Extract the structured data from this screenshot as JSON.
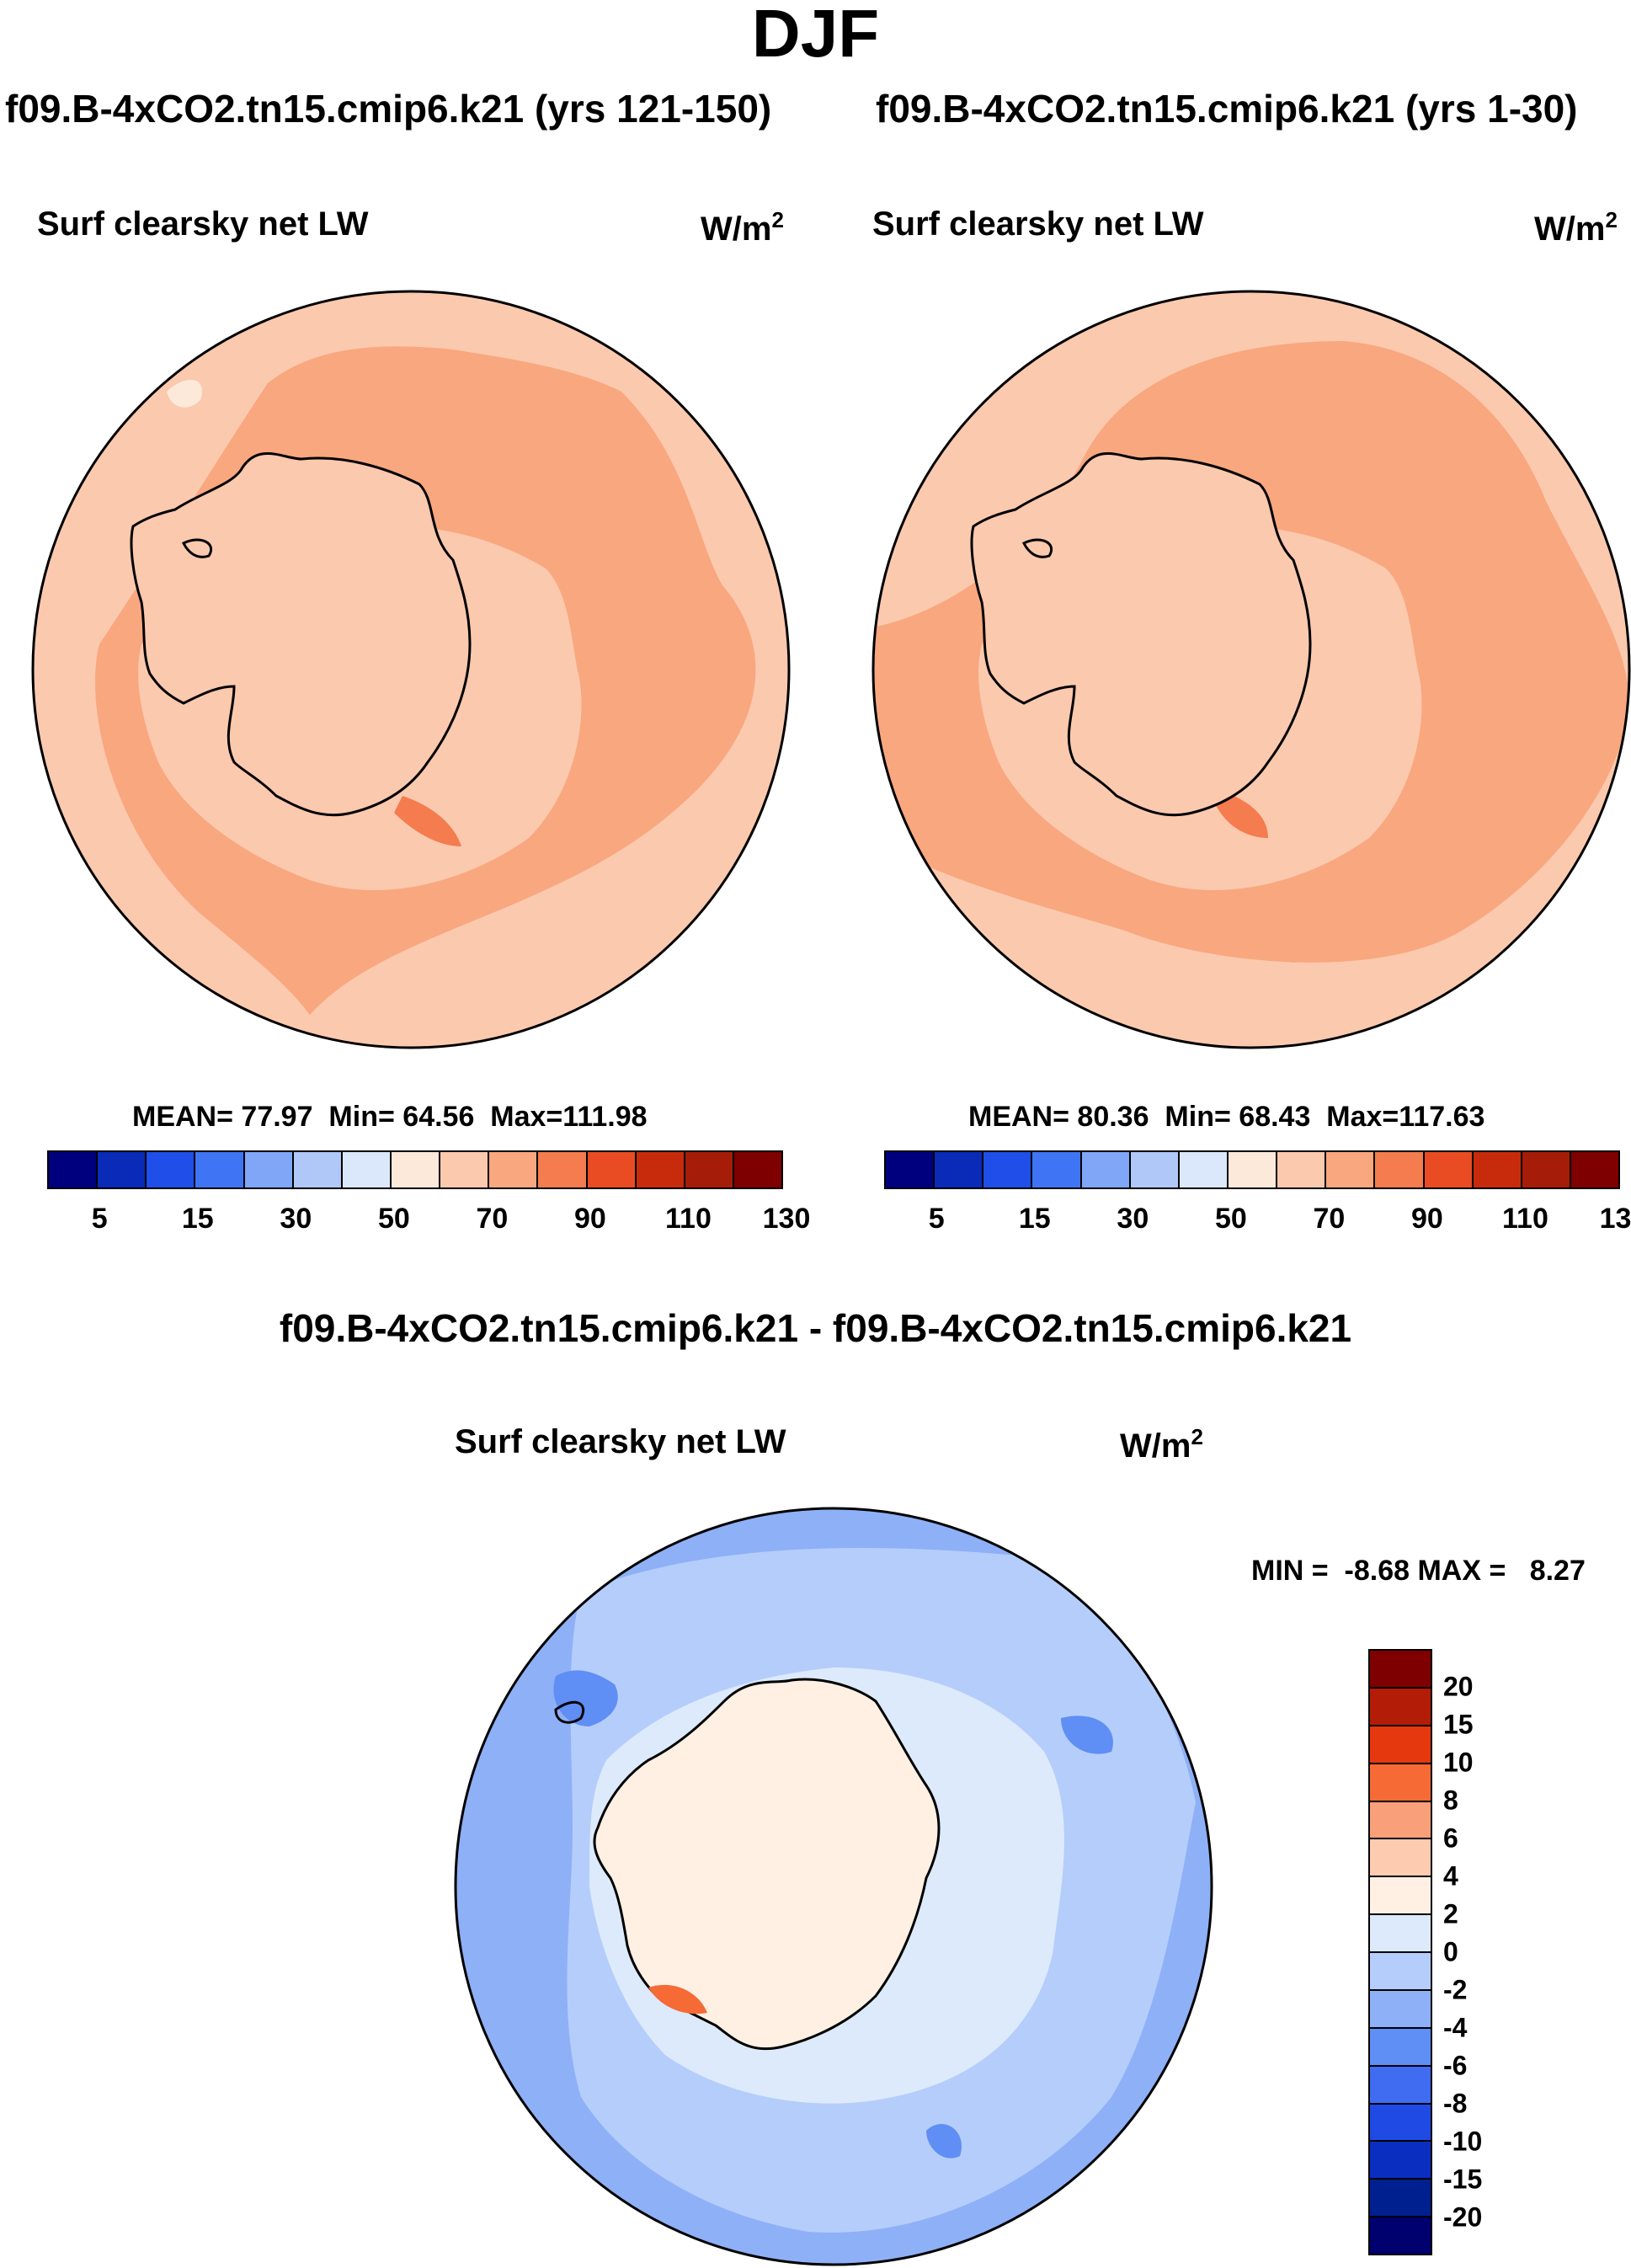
{
  "title": "DJF",
  "panels": [
    {
      "case": "f09.B-4xCO2.tn15.cmip6.k21 (yrs 121-150)",
      "variable": "Surf clearsky net LW",
      "unit_base": "W/m",
      "unit_exp": "2",
      "stats": {
        "mean_label": "MEAN=",
        "mean": "77.97",
        "min_label": "Min=",
        "min": "64.56",
        "max_label": "Max=",
        "max": "111.98"
      }
    },
    {
      "case": "f09.B-4xCO2.tn15.cmip6.k21 (yrs 1-30)",
      "variable": "Surf clearsky net LW",
      "unit_base": "W/m",
      "unit_exp": "2",
      "stats": {
        "mean_label": "MEAN=",
        "mean": "80.36",
        "min_label": "Min=",
        "min": "68.43",
        "max_label": "Max=",
        "max": "117.63"
      }
    }
  ],
  "abs_colorbar": {
    "colors": [
      "#00007f",
      "#0a2ab8",
      "#1f4fe8",
      "#3f75f5",
      "#7fa6f7",
      "#b0c8f8",
      "#dbe8fb",
      "#fde9da",
      "#fbc9ae",
      "#f9a77f",
      "#f47c4f",
      "#e94c22",
      "#c72b0c",
      "#a51d08",
      "#7f0000"
    ],
    "tick_labels": [
      "5",
      "15",
      "30",
      "50",
      "70",
      "90",
      "110",
      "130"
    ]
  },
  "diff": {
    "title": "f09.B-4xCO2.tn15.cmip6.k21 - f09.B-4xCO2.tn15.cmip6.k21",
    "variable": "Surf clearsky net LW",
    "unit_base": "W/m",
    "unit_exp": "2",
    "minmax": {
      "min_label": "MIN =",
      "min": "-8.68",
      "max_label": "MAX =",
      "max": "8.27"
    },
    "colorbar": {
      "colors": [
        "#7f0000",
        "#b31c06",
        "#e6380e",
        "#f56a35",
        "#f9a07a",
        "#fccbb0",
        "#fff0e3",
        "#dceafc",
        "#b5cdfa",
        "#8eb0f7",
        "#5f8ef4",
        "#3f6cf1",
        "#1f4be4",
        "#0a2fc0",
        "#002090",
        "#00006e"
      ],
      "tick_labels": [
        "20",
        "15",
        "10",
        "8",
        "6",
        "4",
        "2",
        "0",
        "-2",
        "-4",
        "-6",
        "-8",
        "-10",
        "-15",
        "-20"
      ]
    }
  }
}
